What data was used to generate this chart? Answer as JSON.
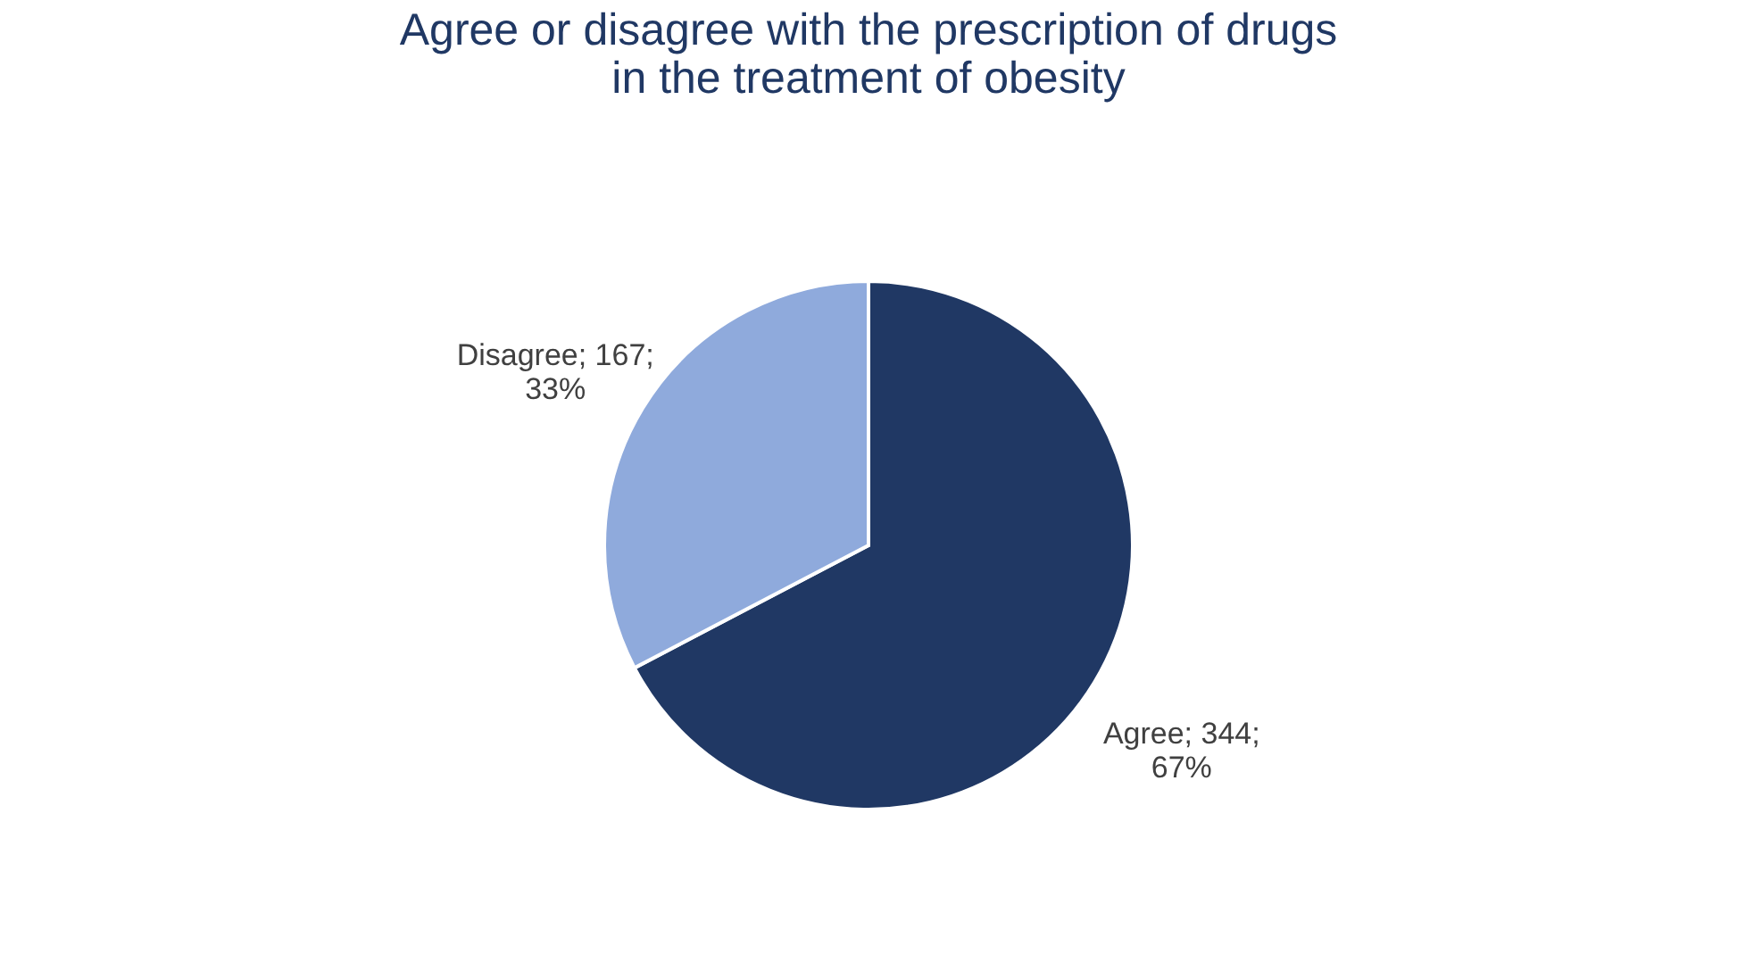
{
  "chart_data": {
    "type": "pie",
    "title": "Agree or disagree with the prescription of drugs\nin the treatment of obesity",
    "categories": [
      "Agree",
      "Disagree"
    ],
    "values": [
      344,
      167
    ],
    "value_labels": [
      "344;\n67%",
      "167;\n33%"
    ],
    "colors": [
      "#203864",
      "#8faadc"
    ],
    "legend": false
  }
}
